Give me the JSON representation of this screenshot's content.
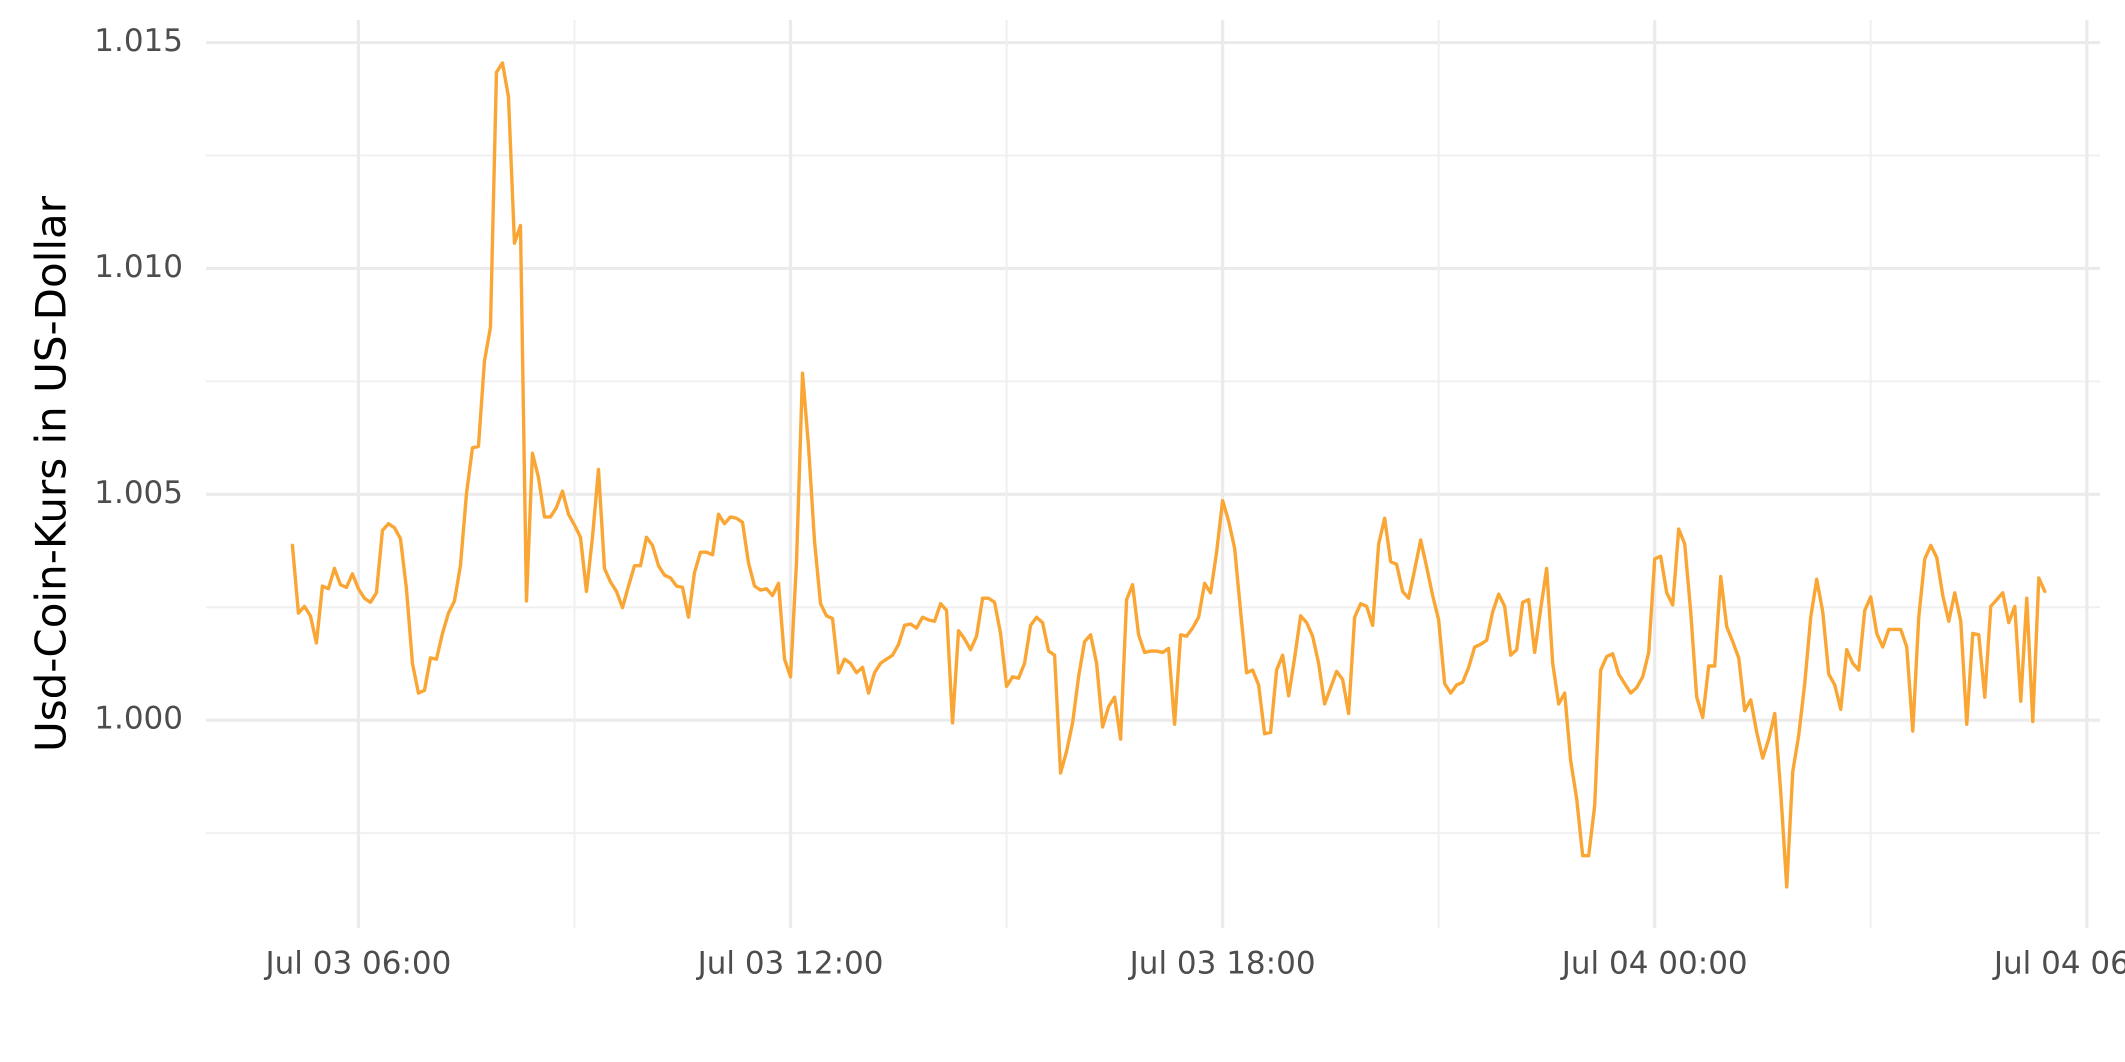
{
  "chart_data": {
    "type": "line",
    "y_label": "Usd-Coin-Kurs in US-Dollar",
    "color": "#faa635",
    "grid": true,
    "xlim": [
      "Jul 03 03:53",
      "Jul 04 06:11"
    ],
    "xticks": [
      "Jul 03 06:00",
      "Jul 03 12:00",
      "Jul 03 18:00",
      "Jul 04 00:00",
      "Jul 04 06:00"
    ],
    "ylim": [
      0.9954,
      1.0155
    ],
    "yticks": [
      {
        "value": 1,
        "label": "1.000"
      },
      1.005,
      {
        "value": 1.01,
        "label": "1.010"
      },
      1.015
    ],
    "x": [
      "Jul 03 05:05",
      "Jul 03 05:10",
      "Jul 03 05:15",
      "Jul 03 05:20",
      "Jul 03 05:25",
      "Jul 03 05:30",
      "Jul 03 05:35",
      "Jul 03 05:40",
      "Jul 03 05:45",
      "Jul 03 05:50",
      "Jul 03 05:55",
      "Jul 03 06:00",
      "Jul 03 06:05",
      "Jul 03 06:10",
      "Jul 03 06:15",
      "Jul 03 06:20",
      "Jul 03 06:25",
      "Jul 03 06:30",
      "Jul 03 06:35",
      "Jul 03 06:40",
      "Jul 03 06:45",
      "Jul 03 06:50",
      "Jul 03 06:55",
      "Jul 03 07:00",
      "Jul 03 07:05",
      "Jul 03 07:10",
      "Jul 03 07:15",
      "Jul 03 07:20",
      "Jul 03 07:25",
      "Jul 03 07:30",
      "Jul 03 07:35",
      "Jul 03 07:40",
      "Jul 03 07:45",
      "Jul 03 07:50",
      "Jul 03 07:55",
      "Jul 03 08:00",
      "Jul 03 08:05",
      "Jul 03 08:10",
      "Jul 03 08:15",
      "Jul 03 08:20",
      "Jul 03 08:25",
      "Jul 03 08:30",
      "Jul 03 08:35",
      "Jul 03 08:40",
      "Jul 03 08:45",
      "Jul 03 08:50",
      "Jul 03 08:55",
      "Jul 03 09:00",
      "Jul 03 09:05",
      "Jul 03 09:10",
      "Jul 03 09:15",
      "Jul 03 09:20",
      "Jul 03 09:25",
      "Jul 03 09:30",
      "Jul 03 09:35",
      "Jul 03 09:40",
      "Jul 03 09:45",
      "Jul 03 09:50",
      "Jul 03 09:55",
      "Jul 03 10:00",
      "Jul 03 10:05",
      "Jul 03 10:10",
      "Jul 03 10:15",
      "Jul 03 10:20",
      "Jul 03 10:25",
      "Jul 03 10:30",
      "Jul 03 10:35",
      "Jul 03 10:40",
      "Jul 03 10:45",
      "Jul 03 10:50",
      "Jul 03 10:55",
      "Jul 03 11:00",
      "Jul 03 11:05",
      "Jul 03 11:10",
      "Jul 03 11:15",
      "Jul 03 11:20",
      "Jul 03 11:25",
      "Jul 03 11:30",
      "Jul 03 11:35",
      "Jul 03 11:40",
      "Jul 03 11:45",
      "Jul 03 11:50",
      "Jul 03 11:55",
      "Jul 03 12:00",
      "Jul 03 12:05",
      "Jul 03 12:10",
      "Jul 03 12:15",
      "Jul 03 12:20",
      "Jul 03 12:25",
      "Jul 03 12:30",
      "Jul 03 12:35",
      "Jul 03 12:40",
      "Jul 03 12:45",
      "Jul 03 12:50",
      "Jul 03 12:55",
      "Jul 03 13:00",
      "Jul 03 13:05",
      "Jul 03 13:10",
      "Jul 03 13:15",
      "Jul 03 13:20",
      "Jul 03 13:25",
      "Jul 03 13:30",
      "Jul 03 13:35",
      "Jul 03 13:40",
      "Jul 03 13:45",
      "Jul 03 13:50",
      "Jul 03 13:55",
      "Jul 03 14:00",
      "Jul 03 14:05",
      "Jul 03 14:10",
      "Jul 03 14:15",
      "Jul 03 14:20",
      "Jul 03 14:25",
      "Jul 03 14:30",
      "Jul 03 14:35",
      "Jul 03 14:40",
      "Jul 03 14:45",
      "Jul 03 14:50",
      "Jul 03 14:55",
      "Jul 03 15:00",
      "Jul 03 15:05",
      "Jul 03 15:10",
      "Jul 03 15:15",
      "Jul 03 15:20",
      "Jul 03 15:25",
      "Jul 03 15:30",
      "Jul 03 15:35",
      "Jul 03 15:40",
      "Jul 03 15:45",
      "Jul 03 15:50",
      "Jul 03 15:55",
      "Jul 03 16:00",
      "Jul 03 16:05",
      "Jul 03 16:10",
      "Jul 03 16:15",
      "Jul 03 16:20",
      "Jul 03 16:25",
      "Jul 03 16:30",
      "Jul 03 16:35",
      "Jul 03 16:40",
      "Jul 03 16:45",
      "Jul 03 16:50",
      "Jul 03 16:55",
      "Jul 03 17:00",
      "Jul 03 17:05",
      "Jul 03 17:10",
      "Jul 03 17:15",
      "Jul 03 17:20",
      "Jul 03 17:25",
      "Jul 03 17:30",
      "Jul 03 17:35",
      "Jul 03 17:40",
      "Jul 03 17:45",
      "Jul 03 17:50",
      "Jul 03 17:55",
      "Jul 03 18:00",
      "Jul 03 18:05",
      "Jul 03 18:10",
      "Jul 03 18:15",
      "Jul 03 18:20",
      "Jul 03 18:25",
      "Jul 03 18:30",
      "Jul 03 18:35",
      "Jul 03 18:40",
      "Jul 03 18:45",
      "Jul 03 18:50",
      "Jul 03 18:55",
      "Jul 03 19:00",
      "Jul 03 19:05",
      "Jul 03 19:10",
      "Jul 03 19:15",
      "Jul 03 19:20",
      "Jul 03 19:25",
      "Jul 03 19:30",
      "Jul 03 19:35",
      "Jul 03 19:40",
      "Jul 03 19:45",
      "Jul 03 19:50",
      "Jul 03 19:55",
      "Jul 03 20:00",
      "Jul 03 20:05",
      "Jul 03 20:10",
      "Jul 03 20:15",
      "Jul 03 20:20",
      "Jul 03 20:25",
      "Jul 03 20:30",
      "Jul 03 20:35",
      "Jul 03 20:40",
      "Jul 03 20:45",
      "Jul 03 20:50",
      "Jul 03 20:55",
      "Jul 03 21:00",
      "Jul 03 21:05",
      "Jul 03 21:10",
      "Jul 03 21:15",
      "Jul 03 21:20",
      "Jul 03 21:25",
      "Jul 03 21:30",
      "Jul 03 21:35",
      "Jul 03 21:40",
      "Jul 03 21:45",
      "Jul 03 21:50",
      "Jul 03 21:55",
      "Jul 03 22:00",
      "Jul 03 22:05",
      "Jul 03 22:10",
      "Jul 03 22:15",
      "Jul 03 22:20",
      "Jul 03 22:25",
      "Jul 03 22:30",
      "Jul 03 22:35",
      "Jul 03 22:40",
      "Jul 03 22:45",
      "Jul 03 22:50",
      "Jul 03 22:55",
      "Jul 03 23:00",
      "Jul 03 23:05",
      "Jul 03 23:10",
      "Jul 03 23:15",
      "Jul 03 23:20",
      "Jul 03 23:25",
      "Jul 03 23:30",
      "Jul 03 23:35",
      "Jul 03 23:40",
      "Jul 03 23:45",
      "Jul 03 23:50",
      "Jul 03 23:55",
      "Jul 04 00:00",
      "Jul 04 00:05",
      "Jul 04 00:10",
      "Jul 04 00:15",
      "Jul 04 00:20",
      "Jul 04 00:25",
      "Jul 04 00:30",
      "Jul 04 00:35",
      "Jul 04 00:40",
      "Jul 04 00:45",
      "Jul 04 00:50",
      "Jul 04 00:55",
      "Jul 04 01:00",
      "Jul 04 01:05",
      "Jul 04 01:10",
      "Jul 04 01:15",
      "Jul 04 01:20",
      "Jul 04 01:25",
      "Jul 04 01:30",
      "Jul 04 01:35",
      "Jul 04 01:40",
      "Jul 04 01:45",
      "Jul 04 01:50",
      "Jul 04 01:55",
      "Jul 04 02:00",
      "Jul 04 02:05",
      "Jul 04 02:10",
      "Jul 04 02:15",
      "Jul 04 02:20",
      "Jul 04 02:25",
      "Jul 04 02:30",
      "Jul 04 02:35",
      "Jul 04 02:40",
      "Jul 04 02:45",
      "Jul 04 02:50",
      "Jul 04 02:55",
      "Jul 04 03:00",
      "Jul 04 03:05",
      "Jul 04 03:10",
      "Jul 04 03:15",
      "Jul 04 03:20",
      "Jul 04 03:25",
      "Jul 04 03:30",
      "Jul 04 03:35",
      "Jul 04 03:40",
      "Jul 04 03:45",
      "Jul 04 03:50",
      "Jul 04 03:55",
      "Jul 04 04:00",
      "Jul 04 04:05",
      "Jul 04 04:10",
      "Jul 04 04:15",
      "Jul 04 04:20",
      "Jul 04 04:25",
      "Jul 04 04:30",
      "Jul 04 04:35",
      "Jul 04 04:40",
      "Jul 04 04:45",
      "Jul 04 04:50",
      "Jul 04 04:55",
      "Jul 04 05:00",
      "Jul 04 05:05",
      "Jul 04 05:10",
      "Jul 04 05:15",
      "Jul 04 05:20",
      "Jul 04 05:25"
    ],
    "values": [
      1.00387,
      1.00237,
      1.00252,
      1.00231,
      1.00171,
      1.00297,
      1.00291,
      1.00336,
      1.003,
      1.00294,
      1.00324,
      1.00291,
      1.0027,
      1.00261,
      1.00282,
      1.0042,
      1.00435,
      1.00426,
      1.00402,
      1.00291,
      1.00126,
      1.0006,
      1.00066,
      1.00138,
      1.00135,
      1.00192,
      1.00237,
      1.00264,
      1.00342,
      1.00501,
      1.00603,
      1.00606,
      1.00795,
      1.0087,
      1.01434,
      1.01455,
      1.0138,
      1.01056,
      1.01095,
      1.00264,
      1.00591,
      1.00537,
      1.0045,
      1.0045,
      1.00471,
      1.00507,
      1.00456,
      1.00432,
      1.00405,
      1.00285,
      1.00405,
      1.00555,
      1.00336,
      1.00306,
      1.00285,
      1.00249,
      1.00297,
      1.00342,
      1.00342,
      1.00405,
      1.00387,
      1.00342,
      1.00321,
      1.00315,
      1.00297,
      1.00294,
      1.00228,
      1.00327,
      1.00372,
      1.00372,
      1.00366,
      1.00456,
      1.00435,
      1.0045,
      1.00447,
      1.00438,
      1.00348,
      1.00297,
      1.00288,
      1.00291,
      1.00276,
      1.00303,
      1.00135,
      1.00096,
      1.00351,
      1.00768,
      1.00606,
      1.00396,
      1.00258,
      1.00231,
      1.00225,
      1.00105,
      1.00135,
      1.00126,
      1.00105,
      1.00117,
      1.0006,
      1.00105,
      1.00126,
      1.00135,
      1.00144,
      1.00168,
      1.0021,
      1.00213,
      1.00204,
      1.00228,
      1.00222,
      1.00219,
      1.00258,
      1.00243,
      0.99994,
      1.00198,
      1.0018,
      1.00156,
      1.00186,
      1.0027,
      1.0027,
      1.00261,
      1.00192,
      1.00075,
      1.00096,
      1.00093,
      1.00126,
      1.0021,
      1.00228,
      1.00216,
      1.00153,
      1.00144,
      0.99883,
      0.99931,
      0.99994,
      1.00096,
      1.00174,
      1.00189,
      1.00126,
      0.99985,
      1.0003,
      1.00051,
      0.99958,
      1.00267,
      1.003,
      1.00189,
      1.0015,
      1.00153,
      1.00153,
      1.0015,
      1.00159,
      0.99991,
      1.00189,
      1.00186,
      1.00204,
      1.00228,
      1.00303,
      1.00282,
      1.00372,
      1.00486,
      1.00441,
      1.00381,
      1.0024,
      1.00105,
      1.00111,
      1.00078,
      0.9997,
      0.99973,
      1.00111,
      1.00144,
      1.00054,
      1.00138,
      1.00231,
      1.00216,
      1.00186,
      1.00126,
      1.00036,
      1.00072,
      1.00108,
      1.0009,
      1.00015,
      1.00228,
      1.00258,
      1.00252,
      1.0021,
      1.0039,
      1.00447,
      1.00351,
      1.00345,
      1.00285,
      1.0027,
      1.00333,
      1.00399,
      1.00339,
      1.00276,
      1.00222,
      1.00081,
      1.0006,
      1.00078,
      1.00084,
      1.00117,
      1.00162,
      1.00168,
      1.00177,
      1.0024,
      1.00279,
      1.00252,
      1.00144,
      1.00156,
      1.00261,
      1.00267,
      1.0015,
      1.00246,
      1.00336,
      1.00126,
      1.00036,
      1.0006,
      0.9991,
      0.99826,
      0.997,
      0.997,
      0.99811,
      1.00111,
      1.00141,
      1.00147,
      1.00102,
      1.00081,
      1.0006,
      1.00072,
      1.00096,
      1.0015,
      1.00357,
      1.00363,
      1.00282,
      1.00255,
      1.00423,
      1.0039,
      1.0024,
      1.00051,
      1.00006,
      1.0012,
      1.0012,
      1.00318,
      1.00207,
      1.00174,
      1.00138,
      1.00021,
      1.00045,
      0.99973,
      0.99916,
      0.99958,
      1.00015,
      0.99841,
      0.99631,
      0.99886,
      0.99967,
      1.00081,
      1.00228,
      1.00312,
      1.0024,
      1.00102,
      1.00078,
      1.00024,
      1.00156,
      1.00126,
      1.00111,
      1.00243,
      1.00273,
      1.00192,
      1.00162,
      1.00201,
      1.00201,
      1.00201,
      1.00162,
      0.99976,
      1.00228,
      1.00357,
      1.00387,
      1.0036,
      1.00276,
      1.00219,
      1.00282,
      1.00219,
      0.99991,
      1.00192,
      1.00189,
      1.00051,
      1.00252,
      1.00267,
      1.00282,
      1.00216,
      1.00252,
      1.00042,
      1.0027,
      0.99997,
      1.00315,
      1.00285
    ]
  }
}
